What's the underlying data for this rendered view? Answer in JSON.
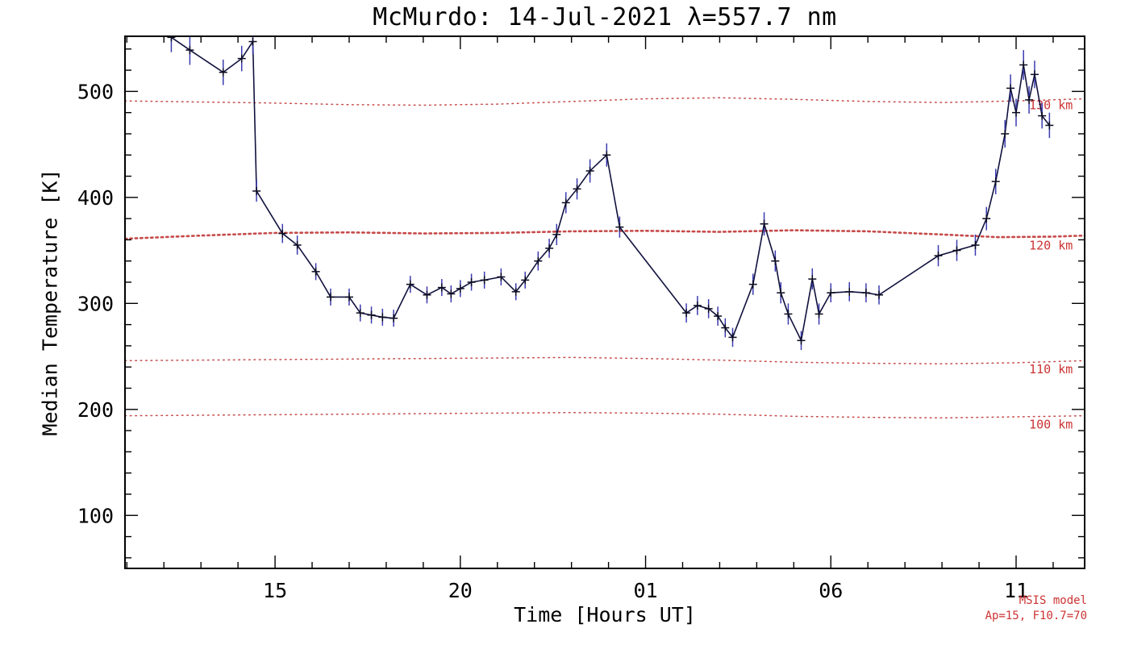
{
  "page": {
    "background": "#ffffff"
  },
  "chart_data": {
    "type": "line",
    "title": "McMurdo: 14-Jul-2021 λ=557.7 nm",
    "xlabel": "Time [Hours UT]",
    "ylabel": "Median Temperature [K]",
    "grid": false,
    "legend": "none",
    "x_axis": {
      "min": 10.95,
      "max": 36.85,
      "minor_step": 1,
      "ticks": [
        {
          "value": 15,
          "label": "15"
        },
        {
          "value": 20,
          "label": "20"
        },
        {
          "value": 25,
          "label": "01"
        },
        {
          "value": 30,
          "label": "06"
        },
        {
          "value": 35,
          "label": "11"
        }
      ]
    },
    "y_axis": {
      "min": 50,
      "max": 552,
      "minor_step": 20,
      "ticks": [
        100,
        200,
        300,
        400,
        500
      ]
    },
    "series": [
      {
        "name": "Median temperature with error bars",
        "marker": "plus",
        "points": [
          [
            12.2,
            551,
            14
          ],
          [
            12.7,
            539,
            14
          ],
          [
            13.6,
            518,
            12
          ],
          [
            14.1,
            531,
            12
          ],
          [
            14.4,
            547,
            12
          ],
          [
            14.5,
            406,
            10
          ],
          [
            15.2,
            366,
            9
          ],
          [
            15.6,
            355,
            9
          ],
          [
            16.1,
            330,
            8
          ],
          [
            16.5,
            306,
            8
          ],
          [
            17.0,
            306,
            8
          ],
          [
            17.3,
            291,
            8
          ],
          [
            17.6,
            289,
            8
          ],
          [
            17.9,
            287,
            8
          ],
          [
            18.2,
            286,
            8
          ],
          [
            18.65,
            318,
            8
          ],
          [
            19.1,
            308,
            8
          ],
          [
            19.5,
            315,
            8
          ],
          [
            19.75,
            309,
            8
          ],
          [
            20.0,
            314,
            8
          ],
          [
            20.3,
            320,
            8
          ],
          [
            20.65,
            322,
            8
          ],
          [
            21.1,
            325,
            8
          ],
          [
            21.5,
            311,
            8
          ],
          [
            21.75,
            322,
            8
          ],
          [
            22.1,
            340,
            9
          ],
          [
            22.4,
            352,
            9
          ],
          [
            22.6,
            365,
            10
          ],
          [
            22.85,
            395,
            10
          ],
          [
            23.15,
            408,
            10
          ],
          [
            23.5,
            425,
            11
          ],
          [
            23.95,
            440,
            11
          ],
          [
            24.3,
            372,
            10
          ],
          [
            26.1,
            291,
            9
          ],
          [
            26.4,
            298,
            9
          ],
          [
            26.7,
            295,
            9
          ],
          [
            26.95,
            288,
            9
          ],
          [
            27.15,
            277,
            9
          ],
          [
            27.35,
            268,
            9
          ],
          [
            27.9,
            318,
            10
          ],
          [
            28.2,
            375,
            11
          ],
          [
            28.5,
            340,
            10
          ],
          [
            28.65,
            310,
            10
          ],
          [
            28.85,
            290,
            10
          ],
          [
            29.2,
            265,
            9
          ],
          [
            29.5,
            323,
            10
          ],
          [
            29.68,
            290,
            10
          ],
          [
            30.0,
            310,
            9
          ],
          [
            30.5,
            311,
            9
          ],
          [
            30.95,
            310,
            9
          ],
          [
            31.3,
            308,
            9
          ],
          [
            32.9,
            345,
            10
          ],
          [
            33.4,
            350,
            10
          ],
          [
            33.9,
            355,
            10
          ],
          [
            34.2,
            380,
            11
          ],
          [
            34.45,
            415,
            12
          ],
          [
            34.7,
            460,
            13
          ],
          [
            34.85,
            503,
            13
          ],
          [
            35.0,
            480,
            13
          ],
          [
            35.2,
            525,
            14
          ],
          [
            35.35,
            492,
            13
          ],
          [
            35.5,
            516,
            13
          ],
          [
            35.7,
            477,
            12
          ],
          [
            35.9,
            468,
            12
          ]
        ]
      }
    ],
    "model_lines": [
      {
        "label": "130 km",
        "weight": 1.5,
        "dash": "1.6 4.8",
        "label_at": [
          35.35,
          483
        ],
        "points": [
          [
            10.95,
            491
          ],
          [
            13,
            490
          ],
          [
            15,
            489
          ],
          [
            17,
            487.5
          ],
          [
            19,
            487
          ],
          [
            21,
            488
          ],
          [
            23,
            490.5
          ],
          [
            25,
            493
          ],
          [
            27,
            494
          ],
          [
            29,
            492.5
          ],
          [
            31,
            490.5
          ],
          [
            33,
            489.5
          ],
          [
            35,
            491
          ],
          [
            36.85,
            493
          ]
        ]
      },
      {
        "label": "120 km",
        "weight": 2.6,
        "dash": "2.4 4.0",
        "label_at": [
          35.35,
          351
        ],
        "points": [
          [
            10.95,
            361
          ],
          [
            13,
            364
          ],
          [
            15,
            366.5
          ],
          [
            17,
            367
          ],
          [
            19,
            366
          ],
          [
            21,
            366.5
          ],
          [
            23,
            368
          ],
          [
            25,
            368.5
          ],
          [
            27,
            367.5
          ],
          [
            29,
            369
          ],
          [
            31,
            368
          ],
          [
            33,
            365
          ],
          [
            34.5,
            362.5
          ],
          [
            36,
            363
          ],
          [
            36.85,
            364
          ]
        ]
      },
      {
        "label": "110 km",
        "weight": 1.5,
        "dash": "1.6 4.8",
        "label_at": [
          35.35,
          234
        ],
        "points": [
          [
            10.95,
            246
          ],
          [
            13,
            246.5
          ],
          [
            15,
            247
          ],
          [
            17,
            247.5
          ],
          [
            19,
            248
          ],
          [
            21,
            248.5
          ],
          [
            23,
            249
          ],
          [
            25,
            248
          ],
          [
            27,
            246.5
          ],
          [
            29,
            244.5
          ],
          [
            31,
            243.5
          ],
          [
            33,
            243
          ],
          [
            35,
            244
          ],
          [
            36.85,
            246
          ]
        ]
      },
      {
        "label": "100 km",
        "weight": 1.5,
        "dash": "1.6 4.8",
        "label_at": [
          35.35,
          182
        ],
        "points": [
          [
            10.95,
            194
          ],
          [
            13,
            194.5
          ],
          [
            15,
            195
          ],
          [
            17,
            195.5
          ],
          [
            19,
            196
          ],
          [
            21,
            196.5
          ],
          [
            23,
            197
          ],
          [
            25,
            196.5
          ],
          [
            27,
            195.5
          ],
          [
            29,
            193.5
          ],
          [
            31,
            192.5
          ],
          [
            33,
            192
          ],
          [
            35,
            193
          ],
          [
            36.85,
            194
          ]
        ]
      }
    ],
    "annotations": {
      "line1": "MSIS model",
      "line2": "Ap=15, F10.7=70"
    },
    "colors": {
      "series": "#11123d",
      "marker": "#0a0a20",
      "error": "#3b3bb0",
      "model": "#c64a4a",
      "model_label": "#cc3333",
      "annotation": "#cc3333",
      "axis": "#000000"
    }
  }
}
